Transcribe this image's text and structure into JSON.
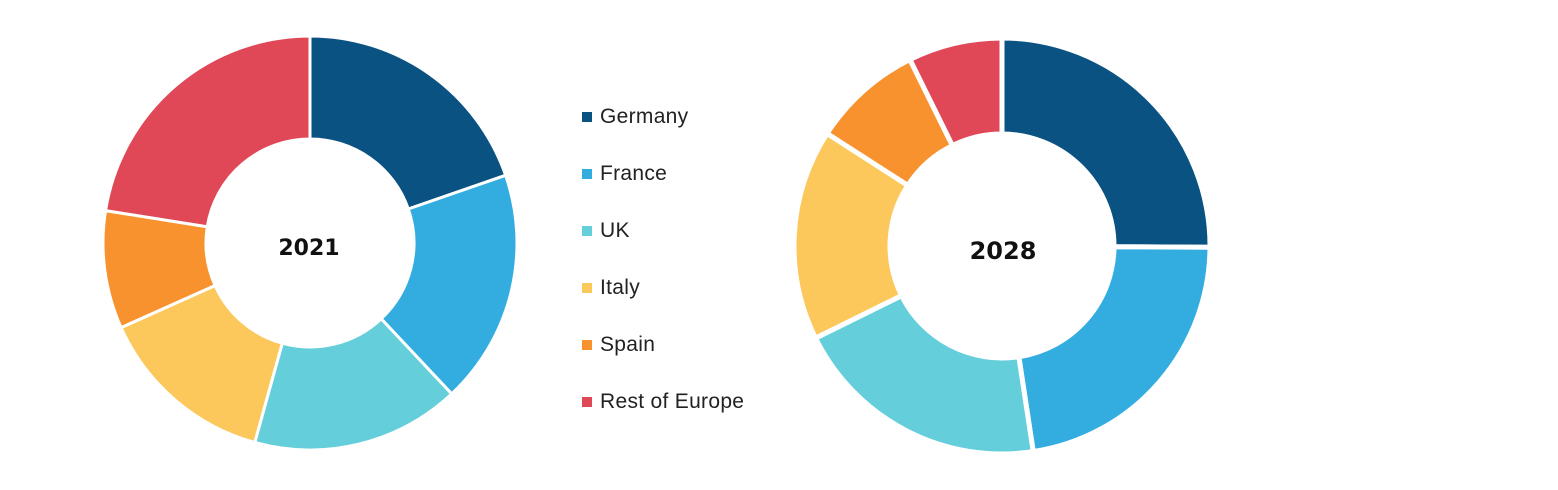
{
  "chart_data": [
    {
      "type": "pie",
      "center_label": "2021",
      "categories": [
        "Germany",
        "France",
        "UK",
        "Italy",
        "Spain",
        "Rest of Europe"
      ],
      "values": [
        19.7,
        18.3,
        16.3,
        14.0,
        9.2,
        22.5
      ]
    },
    {
      "type": "pie",
      "center_label": "2028",
      "categories": [
        "Germany",
        "France",
        "UK",
        "Italy",
        "Spain",
        "Rest of Europe"
      ],
      "values": [
        25.1,
        22.5,
        20.1,
        16.4,
        8.6,
        7.3
      ]
    }
  ],
  "legend": {
    "placement": "between charts",
    "items": [
      {
        "label": "Germany",
        "color": "#0a5282"
      },
      {
        "label": "France",
        "color": "#33ade0"
      },
      {
        "label": "UK",
        "color": "#64cfda"
      },
      {
        "label": "Italy",
        "color": "#fcc75b"
      },
      {
        "label": "Spain",
        "color": "#f8922e"
      },
      {
        "label": "Rest of Europe",
        "color": "#e04858"
      }
    ]
  }
}
